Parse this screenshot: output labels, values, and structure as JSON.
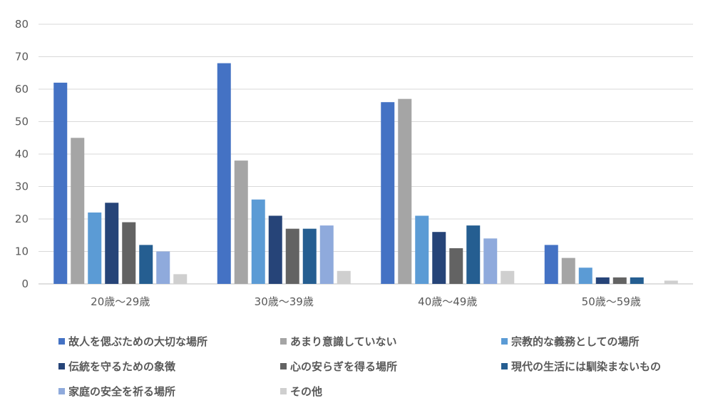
{
  "chart_data": {
    "type": "bar",
    "categories": [
      "20歳〜29歳",
      "30歳〜39歳",
      "40歳〜49歳",
      "50歳〜59歳"
    ],
    "series": [
      {
        "name": "故人を偲ぶための大切な場所",
        "color": "#4472C4",
        "values": [
          62,
          68,
          56,
          12
        ]
      },
      {
        "name": "あまり意識していない",
        "color": "#A5A5A5",
        "values": [
          45,
          38,
          57,
          8
        ]
      },
      {
        "name": "宗教的な義務としての場所",
        "color": "#5B9BD5",
        "values": [
          22,
          26,
          21,
          5
        ]
      },
      {
        "name": "伝統を守るための象徴",
        "color": "#264478",
        "values": [
          25,
          21,
          16,
          2
        ]
      },
      {
        "name": "心の安らぎを得る場所",
        "color": "#636363",
        "values": [
          19,
          17,
          11,
          2
        ]
      },
      {
        "name": "現代の生活には馴染まないもの",
        "color": "#255E91",
        "values": [
          12,
          17,
          18,
          2
        ]
      },
      {
        "name": "家庭の安全を祈る場所",
        "color": "#8FAADC",
        "values": [
          10,
          18,
          14,
          0
        ]
      },
      {
        "name": "その他",
        "color": "#CFCFCF",
        "values": [
          3,
          4,
          4,
          1
        ]
      }
    ],
    "yticks": [
      "0",
      "10",
      "20",
      "30",
      "40",
      "50",
      "60",
      "70",
      "80"
    ],
    "ylim": [
      0,
      80
    ],
    "grid": true,
    "legend_position": "bottom"
  }
}
